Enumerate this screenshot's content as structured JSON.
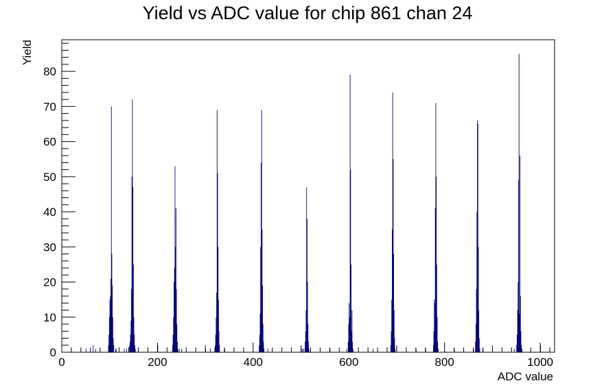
{
  "chart_data": {
    "type": "bar",
    "title": "Yield vs ADC value for chip 861 chan 24",
    "xlabel": "ADC value",
    "ylabel": "Yield",
    "xlim": [
      0,
      1030
    ],
    "ylim": [
      0,
      89
    ],
    "x_ticks": [
      0,
      200,
      400,
      600,
      800,
      1000
    ],
    "y_ticks": [
      0,
      10,
      20,
      30,
      40,
      50,
      60,
      70,
      80
    ],
    "grid": false,
    "legend": "none",
    "bar_color": "#000080",
    "bins": [
      {
        "x": 50,
        "y": 1
      },
      {
        "x": 65,
        "y": 2
      },
      {
        "x": 70,
        "y": 1
      },
      {
        "x": 97,
        "y": 2
      },
      {
        "x": 98,
        "y": 5
      },
      {
        "x": 99,
        "y": 10
      },
      {
        "x": 100,
        "y": 15
      },
      {
        "x": 101,
        "y": 16
      },
      {
        "x": 102,
        "y": 21
      },
      {
        "x": 103,
        "y": 70
      },
      {
        "x": 104,
        "y": 28
      },
      {
        "x": 105,
        "y": 19
      },
      {
        "x": 106,
        "y": 10
      },
      {
        "x": 107,
        "y": 4
      },
      {
        "x": 108,
        "y": 2
      },
      {
        "x": 112,
        "y": 1
      },
      {
        "x": 113,
        "y": 1
      },
      {
        "x": 130,
        "y": 1
      },
      {
        "x": 135,
        "y": 1
      },
      {
        "x": 141,
        "y": 2
      },
      {
        "x": 142,
        "y": 3
      },
      {
        "x": 143,
        "y": 5
      },
      {
        "x": 144,
        "y": 9
      },
      {
        "x": 145,
        "y": 18
      },
      {
        "x": 146,
        "y": 50
      },
      {
        "x": 147,
        "y": 72
      },
      {
        "x": 148,
        "y": 47
      },
      {
        "x": 149,
        "y": 25
      },
      {
        "x": 150,
        "y": 10
      },
      {
        "x": 151,
        "y": 5
      },
      {
        "x": 152,
        "y": 2
      },
      {
        "x": 153,
        "y": 1
      },
      {
        "x": 200,
        "y": 2
      },
      {
        "x": 231,
        "y": 2
      },
      {
        "x": 232,
        "y": 5
      },
      {
        "x": 233,
        "y": 10
      },
      {
        "x": 234,
        "y": 20
      },
      {
        "x": 235,
        "y": 24
      },
      {
        "x": 236,
        "y": 53
      },
      {
        "x": 237,
        "y": 30
      },
      {
        "x": 238,
        "y": 41
      },
      {
        "x": 239,
        "y": 18
      },
      {
        "x": 240,
        "y": 8
      },
      {
        "x": 241,
        "y": 3
      },
      {
        "x": 242,
        "y": 1
      },
      {
        "x": 245,
        "y": 1
      },
      {
        "x": 250,
        "y": 1
      },
      {
        "x": 300,
        "y": 1
      },
      {
        "x": 310,
        "y": 1
      },
      {
        "x": 320,
        "y": 2
      },
      {
        "x": 321,
        "y": 5
      },
      {
        "x": 322,
        "y": 10
      },
      {
        "x": 323,
        "y": 17
      },
      {
        "x": 324,
        "y": 69
      },
      {
        "x": 325,
        "y": 51
      },
      {
        "x": 326,
        "y": 30
      },
      {
        "x": 327,
        "y": 15
      },
      {
        "x": 328,
        "y": 6
      },
      {
        "x": 329,
        "y": 2
      },
      {
        "x": 340,
        "y": 1
      },
      {
        "x": 412,
        "y": 2
      },
      {
        "x": 413,
        "y": 5
      },
      {
        "x": 414,
        "y": 11
      },
      {
        "x": 415,
        "y": 30
      },
      {
        "x": 416,
        "y": 54
      },
      {
        "x": 417,
        "y": 69
      },
      {
        "x": 418,
        "y": 35
      },
      {
        "x": 419,
        "y": 19
      },
      {
        "x": 420,
        "y": 8
      },
      {
        "x": 421,
        "y": 3
      },
      {
        "x": 422,
        "y": 1
      },
      {
        "x": 430,
        "y": 1
      },
      {
        "x": 500,
        "y": 1
      },
      {
        "x": 502,
        "y": 1
      },
      {
        "x": 505,
        "y": 1
      },
      {
        "x": 508,
        "y": 3
      },
      {
        "x": 509,
        "y": 6
      },
      {
        "x": 510,
        "y": 12
      },
      {
        "x": 511,
        "y": 47
      },
      {
        "x": 512,
        "y": 38
      },
      {
        "x": 513,
        "y": 20
      },
      {
        "x": 514,
        "y": 8
      },
      {
        "x": 515,
        "y": 3
      },
      {
        "x": 516,
        "y": 1
      },
      {
        "x": 560,
        "y": 1
      },
      {
        "x": 595,
        "y": 1
      },
      {
        "x": 598,
        "y": 3
      },
      {
        "x": 599,
        "y": 8
      },
      {
        "x": 600,
        "y": 14
      },
      {
        "x": 601,
        "y": 10
      },
      {
        "x": 602,
        "y": 79
      },
      {
        "x": 603,
        "y": 52
      },
      {
        "x": 604,
        "y": 25
      },
      {
        "x": 605,
        "y": 6
      },
      {
        "x": 606,
        "y": 12
      },
      {
        "x": 607,
        "y": 3
      },
      {
        "x": 608,
        "y": 1
      },
      {
        "x": 650,
        "y": 1
      },
      {
        "x": 687,
        "y": 2
      },
      {
        "x": 688,
        "y": 6
      },
      {
        "x": 689,
        "y": 15
      },
      {
        "x": 690,
        "y": 35
      },
      {
        "x": 691,
        "y": 74
      },
      {
        "x": 692,
        "y": 55
      },
      {
        "x": 693,
        "y": 28
      },
      {
        "x": 694,
        "y": 12
      },
      {
        "x": 695,
        "y": 4
      },
      {
        "x": 696,
        "y": 1
      },
      {
        "x": 740,
        "y": 1
      },
      {
        "x": 760,
        "y": 1
      },
      {
        "x": 776,
        "y": 2
      },
      {
        "x": 777,
        "y": 6
      },
      {
        "x": 778,
        "y": 15
      },
      {
        "x": 779,
        "y": 14
      },
      {
        "x": 780,
        "y": 41
      },
      {
        "x": 781,
        "y": 71
      },
      {
        "x": 782,
        "y": 50
      },
      {
        "x": 783,
        "y": 25
      },
      {
        "x": 784,
        "y": 10
      },
      {
        "x": 785,
        "y": 3
      },
      {
        "x": 786,
        "y": 1
      },
      {
        "x": 820,
        "y": 1
      },
      {
        "x": 860,
        "y": 1
      },
      {
        "x": 864,
        "y": 3
      },
      {
        "x": 865,
        "y": 8
      },
      {
        "x": 866,
        "y": 18
      },
      {
        "x": 867,
        "y": 40
      },
      {
        "x": 868,
        "y": 66
      },
      {
        "x": 869,
        "y": 65
      },
      {
        "x": 870,
        "y": 30
      },
      {
        "x": 871,
        "y": 12
      },
      {
        "x": 872,
        "y": 4
      },
      {
        "x": 873,
        "y": 1
      },
      {
        "x": 880,
        "y": 1
      },
      {
        "x": 945,
        "y": 1
      },
      {
        "x": 950,
        "y": 2
      },
      {
        "x": 951,
        "y": 5
      },
      {
        "x": 952,
        "y": 12
      },
      {
        "x": 953,
        "y": 20
      },
      {
        "x": 954,
        "y": 49
      },
      {
        "x": 955,
        "y": 85
      },
      {
        "x": 956,
        "y": 11
      },
      {
        "x": 957,
        "y": 56
      },
      {
        "x": 958,
        "y": 16
      },
      {
        "x": 959,
        "y": 6
      },
      {
        "x": 960,
        "y": 2
      },
      {
        "x": 961,
        "y": 1
      },
      {
        "x": 1000,
        "y": 2
      }
    ]
  }
}
